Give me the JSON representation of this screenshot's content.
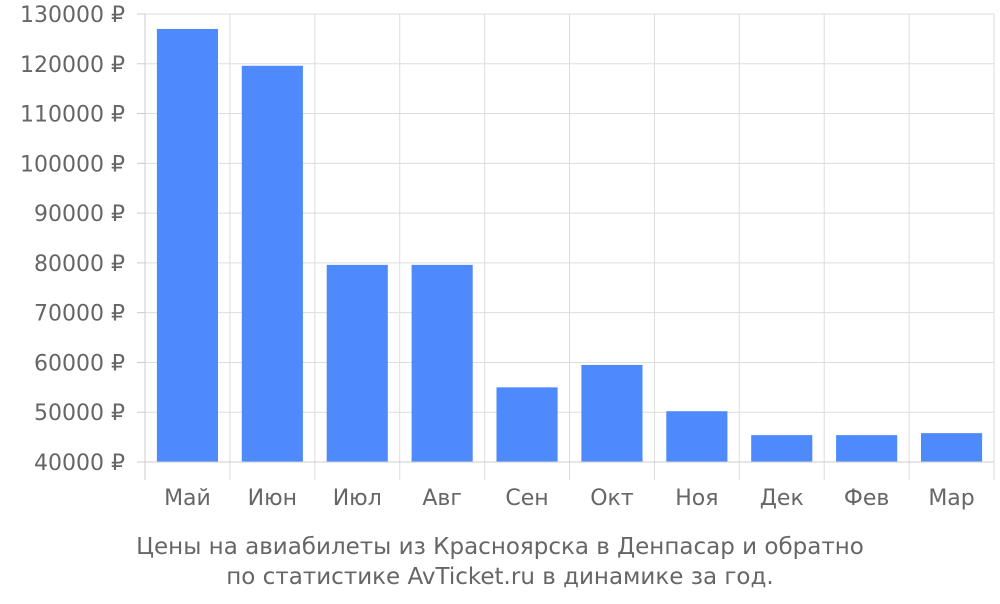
{
  "chart_data": {
    "type": "bar",
    "categories": [
      "Май",
      "Июн",
      "Июл",
      "Авг",
      "Сен",
      "Окт",
      "Ноя",
      "Дек",
      "Фев",
      "Мар"
    ],
    "values": [
      127000,
      119600,
      79600,
      79600,
      55000,
      59500,
      50200,
      45400,
      45400,
      45800
    ],
    "ylim": [
      40000,
      130000
    ],
    "ytick_step": 10000,
    "ytick_suffix": " ₽",
    "grid": true,
    "bar_color": "#4e8afb",
    "grid_color": "#dddddd",
    "axis_color": "#cccccc",
    "label_color": "#666666"
  },
  "caption": {
    "line1": "Цены на авиабилеты из Красноярска в Денпасар и обратно",
    "line2": "по статистике AvTicket.ru в динамике за год."
  }
}
